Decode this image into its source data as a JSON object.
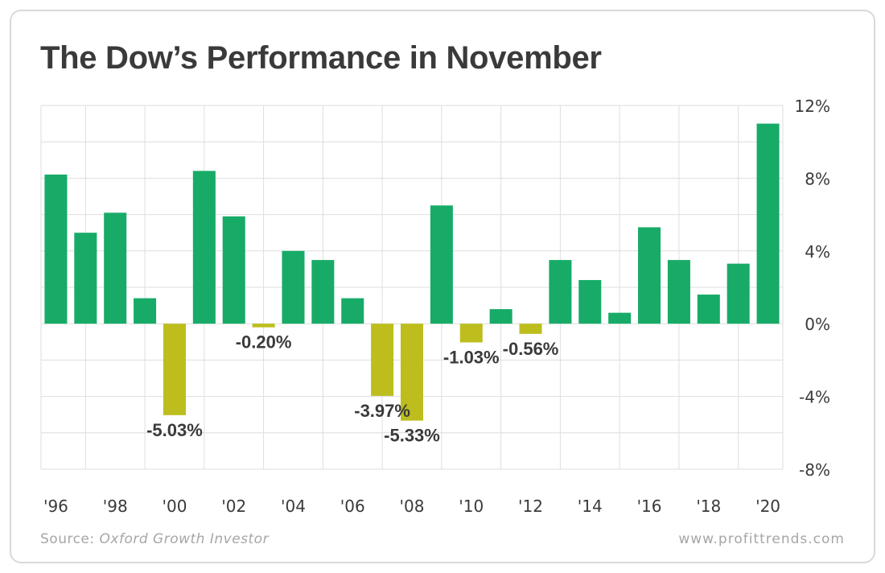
{
  "header": {
    "title": "The Dow’s Performance in November"
  },
  "footer": {
    "source_prefix": "Source: ",
    "source_name": "Oxford Growth Investor",
    "website": "www.profittrends.com"
  },
  "colors": {
    "positive": "#17ab67",
    "negative": "#bdbe1e",
    "grid": "#dedede",
    "label": "#3a3a3a"
  },
  "chart_data": {
    "type": "bar",
    "title": "The Dow’s Performance in November",
    "xlabel": "",
    "ylabel": "",
    "ylim": [
      -8,
      12
    ],
    "yticks": [
      12,
      8,
      4,
      0,
      -4,
      -8
    ],
    "ytick_labels": [
      "12%",
      "8%",
      "4%",
      "0%",
      "-4%",
      "-8%"
    ],
    "y_axis_side": "right",
    "grid": true,
    "legend": false,
    "categories": [
      "1996",
      "1997",
      "1998",
      "1999",
      "2000",
      "2001",
      "2002",
      "2003",
      "2004",
      "2005",
      "2006",
      "2007",
      "2008",
      "2009",
      "2010",
      "2011",
      "2012",
      "2013",
      "2014",
      "2015",
      "2016",
      "2017",
      "2018",
      "2019",
      "2020"
    ],
    "xtick_labels": [
      "'96",
      "",
      "'98",
      "",
      "'00",
      "",
      "'02",
      "",
      "'04",
      "",
      "'06",
      "",
      "'08",
      "",
      "'10",
      "",
      "'12",
      "",
      "'14",
      "",
      "'16",
      "",
      "'18",
      "",
      "'20"
    ],
    "values": [
      8.2,
      5.0,
      6.1,
      1.4,
      -5.03,
      8.4,
      5.9,
      -0.2,
      4.0,
      3.5,
      1.4,
      -3.97,
      -5.33,
      6.5,
      -1.03,
      0.8,
      -0.56,
      3.5,
      2.4,
      0.6,
      5.3,
      3.5,
      1.6,
      3.3,
      11.0
    ],
    "data_labels": [
      {
        "index": 4,
        "text": "-5.03%"
      },
      {
        "index": 7,
        "text": "-0.20%"
      },
      {
        "index": 11,
        "text": "-3.97%"
      },
      {
        "index": 12,
        "text": "-5.33%"
      },
      {
        "index": 14,
        "text": "-1.03%"
      },
      {
        "index": 16,
        "text": "-0.56%"
      }
    ]
  }
}
